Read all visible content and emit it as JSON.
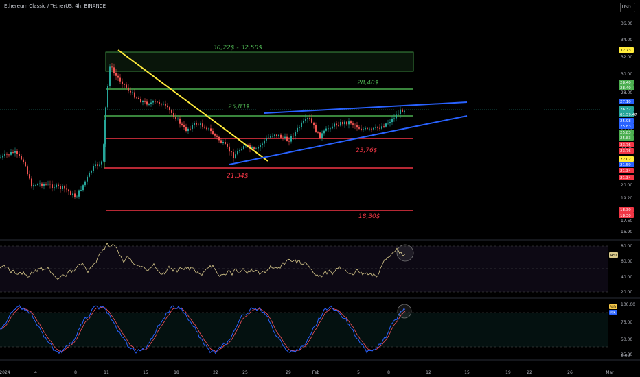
{
  "header": {
    "title": "Ethereum Classic / TetherUS, 4h, BINANCE",
    "currency": "USDT"
  },
  "colors": {
    "background": "#000000",
    "green": "#4caf50",
    "red": "#f23645",
    "blue": "#2962ff",
    "yellow": "#ffeb3b",
    "rsi_line": "#d8c98b",
    "stoch_k": "#2962ff",
    "stoch_d": "#f7525f"
  },
  "price_axis": {
    "ticks": [
      "36.00",
      "34.00",
      "32.00",
      "30.00",
      "28.00",
      "26.00",
      "24.00",
      "22.00",
      "20.00",
      "19.20",
      "18.40",
      "17.60",
      "16.90"
    ]
  },
  "price_badges": [
    {
      "text": "32.73",
      "color": "#ffeb3b",
      "text_color": "#000"
    },
    {
      "text": "28.40",
      "color": "#4caf50"
    },
    {
      "text": "28.40",
      "color": "#4caf50"
    },
    {
      "text": "27.10",
      "color": "#2962ff"
    },
    {
      "text": "26.32",
      "color": "#26a69a"
    },
    {
      "text": "01:59:47",
      "color": "#26a69a"
    },
    {
      "text": "25.98",
      "color": "#2962ff"
    },
    {
      "text": "25.83",
      "color": "#2962ff"
    },
    {
      "text": "25.83",
      "color": "#4caf50"
    },
    {
      "text": "25.83",
      "color": "#4caf50"
    },
    {
      "text": "23.76",
      "color": "#f23645"
    },
    {
      "text": "23.76",
      "color": "#f23645"
    },
    {
      "text": "22.02",
      "color": "#ffeb3b",
      "text_color": "#000"
    },
    {
      "text": "21.59",
      "color": "#2962ff"
    },
    {
      "text": "21.34",
      "color": "#f23645"
    },
    {
      "text": "21.34",
      "color": "#f23645"
    },
    {
      "text": "18.30",
      "color": "#f23645"
    },
    {
      "text": "18.30",
      "color": "#f23645"
    }
  ],
  "levels": [
    {
      "label": "30,22$ - 32,50$",
      "color": "#4caf50"
    },
    {
      "label": "28,40$",
      "color": "#4caf50"
    },
    {
      "label": "25,83$",
      "color": "#4caf50"
    },
    {
      "label": "23,76$",
      "color": "#f23645"
    },
    {
      "label": "21,34$",
      "color": "#f23645"
    },
    {
      "label": "18,30$",
      "color": "#f23645"
    }
  ],
  "rsi": {
    "label": "RSI",
    "ticks": [
      "80.00",
      "60.00",
      "40.00",
      "20.00"
    ]
  },
  "stoch": {
    "labels": [
      "%D",
      "%K"
    ],
    "ticks": [
      "100.00",
      "75.00",
      "50.00",
      "25.00",
      "0.00"
    ]
  },
  "time_axis": {
    "ticks": [
      "2024",
      "4",
      "8",
      "11",
      "15",
      "18",
      "22",
      "25",
      "29",
      "Feb",
      "5",
      "8",
      "12",
      "15",
      "19",
      "22",
      "26",
      "Mar"
    ]
  }
}
